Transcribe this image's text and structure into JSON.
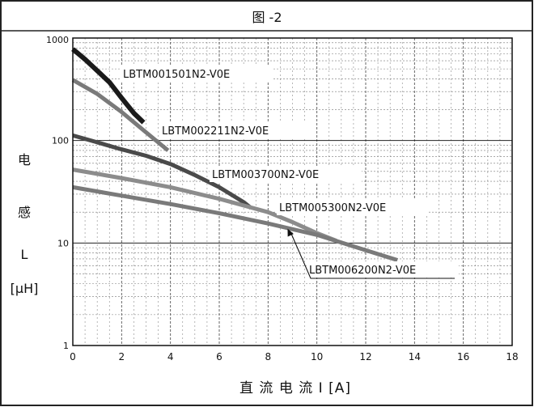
{
  "chart_data": {
    "type": "line",
    "title": "图 -2",
    "xlabel": "直 流 电 流 I [A]",
    "ylabel_lines": [
      "电",
      "感",
      "L",
      "[μH]"
    ],
    "x_scale": "linear",
    "y_scale": "log",
    "xlim": [
      0,
      18
    ],
    "ylim": [
      1,
      1000
    ],
    "x_ticks": [
      0,
      2,
      4,
      6,
      8,
      10,
      12,
      14,
      16,
      18
    ],
    "y_ticks": [
      1,
      10,
      100,
      1000
    ],
    "grid": true,
    "series": [
      {
        "name": "LBTM001501N2-V0E",
        "color": "#1a1a1a",
        "x": [
          0,
          0.5,
          1.0,
          1.5,
          2.0,
          2.5,
          2.9
        ],
        "y": [
          780,
          620,
          480,
          370,
          260,
          185,
          150
        ]
      },
      {
        "name": "LBTM002211N2-V0E",
        "color": "#7a7a7a",
        "x": [
          0,
          1.0,
          2.0,
          3.0,
          3.9
        ],
        "y": [
          390,
          285,
          190,
          120,
          80
        ]
      },
      {
        "name": "LBTM003700N2-V0E",
        "color": "#4a4a4a",
        "x": [
          0,
          1,
          2,
          3,
          4,
          5,
          6,
          7,
          7.3
        ],
        "y": [
          112,
          96,
          82,
          71,
          59,
          46,
          35,
          25,
          22
        ]
      },
      {
        "name": "LBTM005300N2-V0E",
        "color": "#8c8c8c",
        "x": [
          0,
          2,
          4,
          6,
          8,
          9,
          10,
          10.8
        ],
        "y": [
          52,
          43,
          35,
          27,
          20,
          16,
          12.5,
          10.5
        ]
      },
      {
        "name": "LBTM006200N2-V0E",
        "color": "#7a7a7a",
        "x": [
          0,
          2,
          4,
          6,
          8,
          10,
          12,
          13.3
        ],
        "y": [
          35,
          29,
          24,
          19.5,
          15.5,
          12,
          8.5,
          6.8
        ]
      }
    ],
    "annotations": [
      {
        "text": "LBTM001501N2-V0E",
        "series": 0
      },
      {
        "text": "LBTM002211N2-V0E",
        "series": 1
      },
      {
        "text": "LBTM003700N2-V0E",
        "series": 2
      },
      {
        "text": "LBTM005300N2-V0E",
        "series": 3
      },
      {
        "text": "LBTM006200N2-V0E",
        "series": 4,
        "arrow_to": [
          8.8,
          13.8
        ]
      }
    ]
  }
}
